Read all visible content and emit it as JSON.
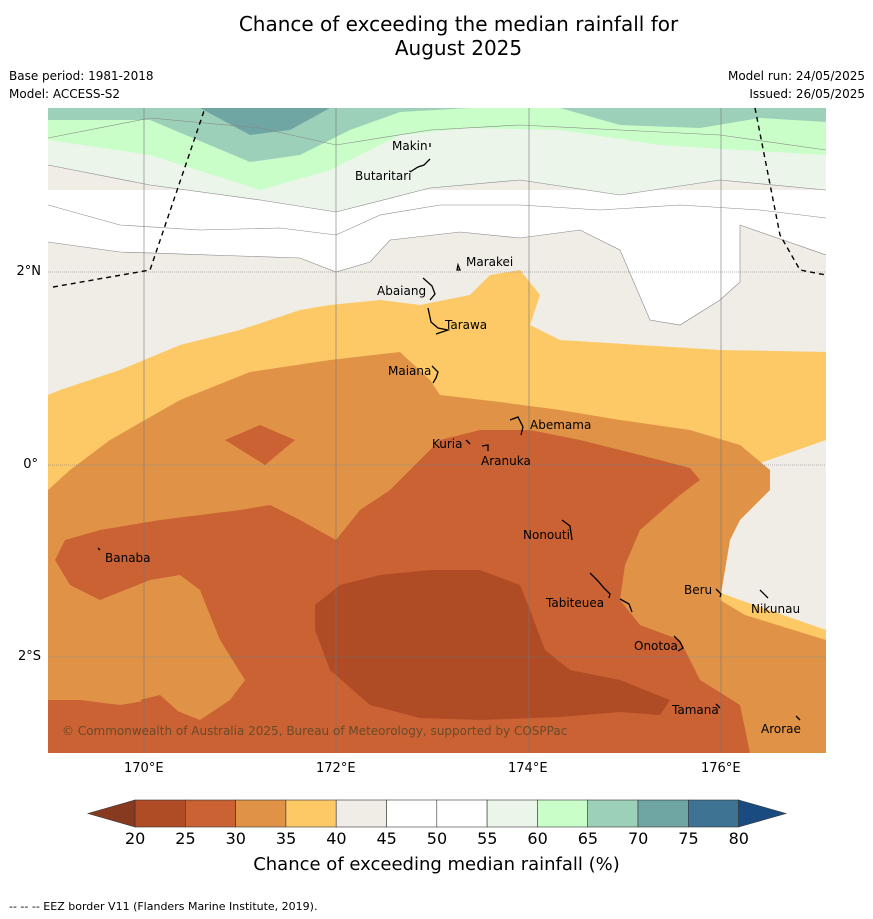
{
  "header": {
    "title_line1": "Chance of exceeding the median rainfall for",
    "title_line2": "August 2025",
    "base_period": "Base period: 1981-2018",
    "model": "Model: ACCESS-S2",
    "model_run": "Model run: 24/05/2025",
    "issued": "Issued: 26/05/2025"
  },
  "map": {
    "x_ticks": [
      "170°E",
      "172°E",
      "174°E",
      "176°E"
    ],
    "y_ticks": [
      "2°N",
      "0°",
      "2°S"
    ],
    "copyright": "© Commonwealth of Australia 2025, Bureau of Meteorology, supported by COSPPac",
    "places": [
      {
        "name": "Makin"
      },
      {
        "name": "Butaritari"
      },
      {
        "name": "Marakei"
      },
      {
        "name": "Abaiang"
      },
      {
        "name": "Tarawa"
      },
      {
        "name": "Maiana"
      },
      {
        "name": "Abemama"
      },
      {
        "name": "Kuria"
      },
      {
        "name": "Aranuka"
      },
      {
        "name": "Nonouti"
      },
      {
        "name": "Banaba"
      },
      {
        "name": "Beru"
      },
      {
        "name": "Tabiteuea"
      },
      {
        "name": "Nikunau"
      },
      {
        "name": "Onotoa"
      },
      {
        "name": "Tamana"
      },
      {
        "name": "Arorae"
      }
    ]
  },
  "colorbar": {
    "label": "Chance of exceeding median rainfall (%)",
    "ticks": [
      "20",
      "25",
      "30",
      "35",
      "40",
      "45",
      "50",
      "55",
      "60",
      "65",
      "70",
      "75",
      "80"
    ],
    "colors": [
      "#b04c25",
      "#ca6233",
      "#e09347",
      "#fdc966",
      "#f0ece6",
      "#ffffff",
      "#ffffff",
      "#ebf5ea",
      "#c9fec8",
      "#9dd0b9",
      "#6fa5a3",
      "#3e7393"
    ],
    "under_color": "#883a20",
    "over_color": "#1a4b80"
  },
  "footer": {
    "legend": "-- -- -- EEZ border V11 (Flanders Marine Institute, 2019)."
  }
}
